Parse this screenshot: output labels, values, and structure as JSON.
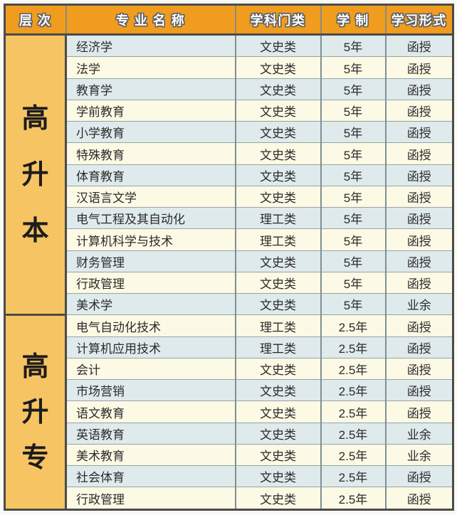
{
  "colors": {
    "header_bg": "#EF9C1F",
    "header_text": "#FFFFFF",
    "header_text_outline": "#5E5F62",
    "level_column_bg": "#F7C463",
    "level_text": "#1C1C1C",
    "row_alt_blue": "#DFEAEC",
    "row_alt_cream": "#FCF9E4",
    "body_text": "#2B2B2B",
    "border_outer": "#4B4B49",
    "border_column": "#7F9094",
    "border_row": "#96A4A7",
    "page_bg": "#FAF9F4"
  },
  "table": {
    "headers": [
      "层  次",
      "专 业 名 称",
      "学科门类",
      "学  制",
      "学习形式"
    ],
    "sections": [
      {
        "level_label": "高升本",
        "level_chars": [
          "高",
          "升",
          "本"
        ],
        "rows": [
          {
            "major": "经济学",
            "category": "文史类",
            "duration": "5年",
            "mode": "函授"
          },
          {
            "major": "法学",
            "category": "文史类",
            "duration": "5年",
            "mode": "函授"
          },
          {
            "major": "教育学",
            "category": "文史类",
            "duration": "5年",
            "mode": "函授"
          },
          {
            "major": "学前教育",
            "category": "文史类",
            "duration": "5年",
            "mode": "函授"
          },
          {
            "major": "小学教育",
            "category": "文史类",
            "duration": "5年",
            "mode": "函授"
          },
          {
            "major": "特殊教育",
            "category": "文史类",
            "duration": "5年",
            "mode": "函授"
          },
          {
            "major": "体育教育",
            "category": "文史类",
            "duration": "5年",
            "mode": "函授"
          },
          {
            "major": "汉语言文学",
            "category": "文史类",
            "duration": "5年",
            "mode": "函授"
          },
          {
            "major": "电气工程及其自动化",
            "category": "理工类",
            "duration": "5年",
            "mode": "函授"
          },
          {
            "major": "计算机科学与技术",
            "category": "理工类",
            "duration": "5年",
            "mode": "函授"
          },
          {
            "major": "财务管理",
            "category": "文史类",
            "duration": "5年",
            "mode": "函授"
          },
          {
            "major": "行政管理",
            "category": "文史类",
            "duration": "5年",
            "mode": "函授"
          },
          {
            "major": "美术学",
            "category": "文史类",
            "duration": "5年",
            "mode": "业余"
          }
        ]
      },
      {
        "level_label": "高升专",
        "level_chars": [
          "高",
          "升",
          "专"
        ],
        "rows": [
          {
            "major": "电气自动化技术",
            "category": "理工类",
            "duration": "2.5年",
            "mode": "函授"
          },
          {
            "major": "计算机应用技术",
            "category": "理工类",
            "duration": "2.5年",
            "mode": "函授"
          },
          {
            "major": "会计",
            "category": "文史类",
            "duration": "2.5年",
            "mode": "函授"
          },
          {
            "major": "市场营销",
            "category": "文史类",
            "duration": "2.5年",
            "mode": "函授"
          },
          {
            "major": "语文教育",
            "category": "文史类",
            "duration": "2.5年",
            "mode": "函授"
          },
          {
            "major": "英语教育",
            "category": "文史类",
            "duration": "2.5年",
            "mode": "业余"
          },
          {
            "major": "美术教育",
            "category": "文史类",
            "duration": "2.5年",
            "mode": "业余"
          },
          {
            "major": "社会体育",
            "category": "文史类",
            "duration": "2.5年",
            "mode": "函授"
          },
          {
            "major": "行政管理",
            "category": "文史类",
            "duration": "2.5年",
            "mode": "函授"
          }
        ]
      }
    ]
  }
}
